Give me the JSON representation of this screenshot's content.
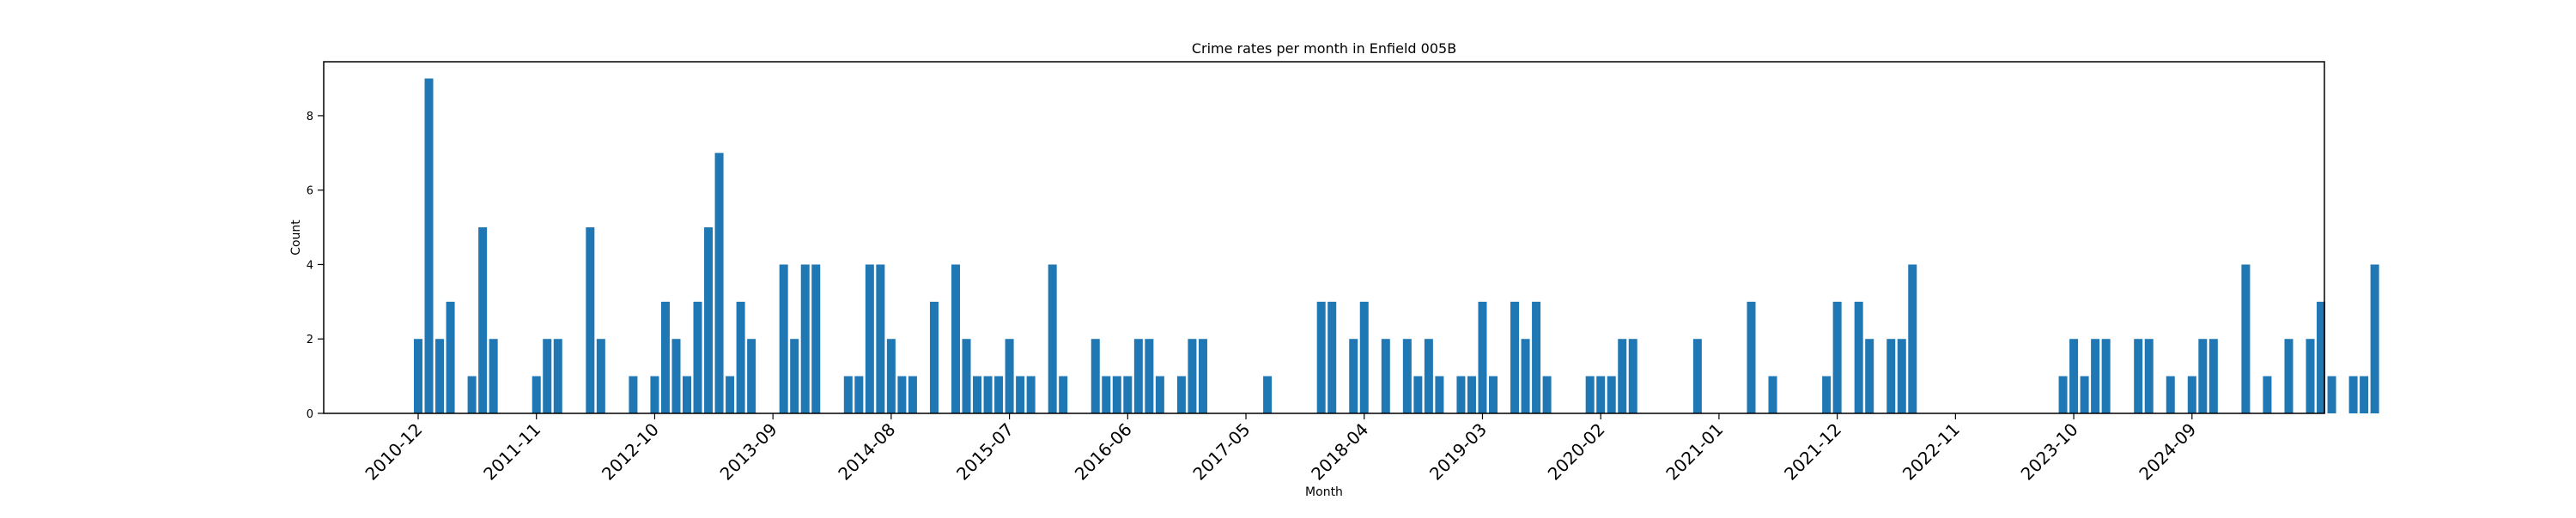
{
  "chart_data": {
    "type": "bar",
    "title": "Crime rates per month in Enfield 005B",
    "xlabel": "Month",
    "ylabel": "Count",
    "ylim": [
      0,
      9.45
    ],
    "yticks": [
      0,
      2,
      4,
      6,
      8
    ],
    "xtick_labels": [
      "2010-12",
      "2011-11",
      "2012-10",
      "2013-09",
      "2014-08",
      "2015-07",
      "2016-06",
      "2017-05",
      "2018-04",
      "2019-03",
      "2020-02",
      "2021-01",
      "2021-12",
      "2022-11",
      "2023-10",
      "2024-09"
    ],
    "bar_color": "#1f77b4",
    "grid": false,
    "values": [
      2,
      9,
      2,
      3,
      0,
      1,
      5,
      2,
      0,
      0,
      0,
      1,
      2,
      2,
      0,
      0,
      5,
      2,
      0,
      0,
      1,
      0,
      1,
      3,
      2,
      1,
      3,
      5,
      7,
      1,
      3,
      2,
      0,
      0,
      4,
      2,
      4,
      4,
      0,
      0,
      1,
      1,
      4,
      4,
      2,
      1,
      1,
      0,
      3,
      0,
      4,
      2,
      1,
      1,
      1,
      2,
      1,
      1,
      0,
      4,
      1,
      0,
      0,
      2,
      1,
      1,
      1,
      2,
      2,
      1,
      0,
      1,
      2,
      2,
      0,
      0,
      0,
      0,
      0,
      1,
      0,
      0,
      0,
      0,
      3,
      3,
      0,
      2,
      3,
      0,
      2,
      0,
      2,
      1,
      2,
      1,
      0,
      1,
      1,
      3,
      1,
      0,
      3,
      2,
      3,
      1,
      0,
      0,
      0,
      1,
      1,
      1,
      2,
      2,
      0,
      0,
      0,
      0,
      0,
      2,
      0,
      0,
      0,
      0,
      3,
      0,
      1,
      0,
      0,
      0,
      0,
      1,
      3,
      0,
      3,
      2,
      0,
      2,
      2,
      4,
      0,
      0,
      0,
      0,
      0,
      0,
      0,
      0,
      0,
      0,
      0,
      0,
      0,
      1,
      2,
      1,
      2,
      2,
      0,
      0,
      2,
      2,
      0,
      1,
      0,
      1,
      2,
      2,
      0,
      0,
      4,
      0,
      1,
      0,
      2,
      0,
      2,
      3,
      1,
      0,
      1,
      1,
      4
    ]
  }
}
